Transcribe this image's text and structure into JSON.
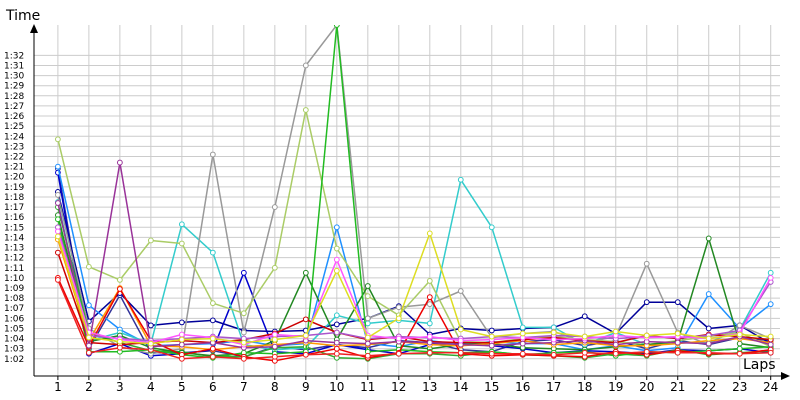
{
  "chart_data": {
    "type": "line",
    "y_axis_title": "Time",
    "x_axis_title": "Laps",
    "x": [
      1,
      2,
      3,
      4,
      5,
      6,
      7,
      8,
      9,
      10,
      11,
      12,
      13,
      14,
      15,
      16,
      17,
      18,
      19,
      20,
      21,
      22,
      23,
      24
    ],
    "y_tick_labels": [
      "1:02",
      "1:03",
      "1:04",
      "1:05",
      "1:06",
      "1:07",
      "1:08",
      "1:09",
      "1:10",
      "1:11",
      "1:12",
      "1:13",
      "1:14",
      "1:15",
      "1:16",
      "1:17",
      "1:18",
      "1:19",
      "1:20",
      "1:21",
      "1:22",
      "1:23",
      "1:24",
      "1:25",
      "1:26",
      "1:27",
      "1:28",
      "1:29",
      "1:30",
      "1:31",
      "1:32"
    ],
    "y_unit": "seconds",
    "ylim": [
      60.3,
      95
    ],
    "xlim": [
      0.1,
      24.3
    ],
    "grid": true,
    "legend": "none",
    "series": [
      {
        "color": "#333399",
        "values": [
          80.8,
          63.0,
          68.3,
          62.6,
          62.6,
          62.8,
          62.2,
          63.2,
          62.9,
          63.4,
          63.1,
          63.8,
          63.6,
          62.9,
          62.7,
          63.7,
          63.9,
          63.3,
          63.8,
          63.0,
          63.8,
          63.4,
          64.1,
          63.8
        ]
      },
      {
        "color": "#0000cc",
        "values": [
          80.4,
          62.5,
          63.5,
          62.3,
          62.5,
          62.9,
          70.5,
          62.7,
          62.5,
          63.4,
          62.9,
          62.5,
          63.4,
          63.5,
          63.3,
          63.0,
          62.6,
          62.8,
          62.7,
          62.5,
          62.9,
          62.8,
          63.0,
          62.6
        ]
      },
      {
        "color": "#000099",
        "values": [
          78.5,
          65.7,
          68.5,
          65.3,
          65.6,
          65.8,
          64.8,
          64.7,
          64.8,
          65.4,
          66.0,
          67.2,
          64.4,
          65.0,
          64.8,
          65.0,
          65.1,
          66.2,
          64.5,
          67.6,
          67.6,
          65.0,
          65.3,
          63.5
        ]
      },
      {
        "color": "#1e90ff",
        "values": [
          81.0,
          67.3,
          64.9,
          63.3,
          63.4,
          63.5,
          63.8,
          63.3,
          63.5,
          75.0,
          63.5,
          63.2,
          63.8,
          63.4,
          63.7,
          63.5,
          63.5,
          62.9,
          63.3,
          62.8,
          63.1,
          68.4,
          65.0,
          67.4
        ]
      },
      {
        "color": "#33cccc",
        "values": [
          77.5,
          63.8,
          64.6,
          63.5,
          75.3,
          72.5,
          63.4,
          62.9,
          63.1,
          66.3,
          65.5,
          65.8,
          65.5,
          79.7,
          75.0,
          65.1,
          65.1,
          63.4,
          64.6,
          63.4,
          63.6,
          63.6,
          64.9,
          70.5
        ]
      },
      {
        "color": "#999999",
        "values": [
          78.2,
          65.0,
          63.2,
          62.5,
          63.0,
          82.2,
          64.6,
          77.0,
          91.0,
          95.0,
          66.0,
          67.1,
          67.4,
          68.7,
          64.1,
          64.5,
          64.7,
          63.6,
          64.2,
          71.4,
          64.6,
          63.4,
          65.3,
          64.0
        ]
      },
      {
        "color": "#aacc66",
        "values": [
          83.7,
          71.1,
          69.8,
          73.7,
          73.4,
          67.5,
          66.5,
          71.0,
          86.6,
          72.9,
          68.2,
          66.3,
          69.7,
          63.7,
          63.6,
          64.0,
          64.2,
          63.9,
          63.7,
          63.4,
          63.8,
          64.2,
          64.6,
          63.2
        ]
      },
      {
        "color": "#33aa33",
        "values": [
          77.0,
          64.6,
          63.6,
          62.8,
          62.7,
          62.2,
          62.2,
          63.1,
          63.2,
          62.1,
          62.0,
          62.5,
          62.5,
          62.3,
          62.7,
          62.4,
          62.3,
          62.1,
          62.5,
          62.3,
          62.9,
          62.4,
          62.6,
          62.8
        ]
      },
      {
        "color": "#228822",
        "values": [
          76.2,
          63.7,
          64.3,
          63.1,
          62.6,
          62.3,
          62.5,
          63.8,
          70.5,
          63.9,
          69.2,
          63.3,
          63.0,
          63.4,
          63.5,
          63.1,
          63.0,
          62.9,
          63.2,
          63.4,
          63.7,
          73.9,
          63.5,
          63.1
        ]
      },
      {
        "color": "#22bb22",
        "values": [
          75.8,
          62.7,
          62.7,
          62.9,
          62.4,
          62.1,
          62.6,
          62.5,
          62.7,
          95.0,
          62.7,
          62.9,
          62.7,
          62.6,
          62.7,
          62.4,
          62.6,
          62.7,
          62.3,
          62.7,
          62.6,
          62.8,
          63.0,
          63.2
        ]
      },
      {
        "color": "#ff9900",
        "values": [
          73.8,
          63.8,
          69.0,
          63.3,
          63.2,
          62.9,
          63.2,
          63.4,
          63.6,
          63.3,
          63.4,
          63.7,
          63.4,
          63.3,
          63.5,
          63.8,
          63.4,
          63.6,
          63.3,
          63.3,
          63.5,
          63.8,
          64.0,
          63.6
        ]
      },
      {
        "color": "#ee0000",
        "values": [
          70.0,
          63.2,
          68.9,
          63.8,
          62.4,
          63.0,
          62.2,
          61.8,
          62.4,
          63.0,
          62.1,
          62.6,
          68.1,
          62.5,
          62.3,
          62.4,
          62.3,
          62.2,
          62.7,
          62.4,
          62.8,
          62.5,
          62.5,
          62.9
        ]
      },
      {
        "color": "#cc0000",
        "values": [
          72.5,
          63.6,
          63.4,
          63.6,
          63.8,
          63.6,
          63.9,
          64.5,
          65.9,
          64.6,
          63.9,
          64.2,
          63.7,
          63.6,
          63.6,
          63.9,
          64.1,
          63.8,
          63.6,
          64.3,
          64.0,
          64.4,
          64.2,
          63.9
        ]
      },
      {
        "color": "#ee2222",
        "values": [
          69.8,
          62.6,
          63.1,
          62.9,
          62.0,
          62.2,
          62.0,
          62.2,
          62.4,
          62.5,
          62.3,
          62.5,
          62.6,
          62.6,
          62.5,
          62.5,
          62.4,
          62.6,
          62.5,
          62.7,
          62.6,
          62.6,
          62.5,
          62.6
        ]
      },
      {
        "color": "#993399",
        "values": [
          77.4,
          63.3,
          81.4,
          63.2,
          63.4,
          63.6,
          63.1,
          63.2,
          63.8,
          63.6,
          63.5,
          63.7,
          63.6,
          63.4,
          63.3,
          63.5,
          63.6,
          63.8,
          63.4,
          63.7,
          63.6,
          63.5,
          64.2,
          63.4
        ]
      },
      {
        "color": "#aa55cc",
        "values": [
          75.0,
          64.3,
          64.0,
          63.8,
          64.0,
          64.2,
          64.0,
          64.2,
          64.3,
          64.6,
          64.0,
          64.2,
          64.1,
          64.0,
          64.2,
          64.1,
          64.3,
          64.2,
          64.0,
          64.2,
          64.1,
          64.3,
          64.8,
          69.6
        ]
      },
      {
        "color": "#ff55ff",
        "values": [
          74.6,
          64.6,
          63.9,
          63.6,
          64.4,
          64.1,
          63.4,
          64.4,
          64.2,
          71.8,
          64.3,
          64.0,
          64.2,
          63.8,
          63.9,
          64.1,
          63.9,
          64.0,
          64.3,
          64.1,
          64.2,
          64.0,
          64.5,
          70.0
        ]
      },
      {
        "color": "#dddd22",
        "values": [
          74.1,
          64.1,
          63.7,
          63.5,
          63.9,
          64.0,
          63.6,
          63.9,
          64.3,
          70.7,
          64.1,
          66.0,
          74.4,
          64.9,
          64.2,
          64.5,
          64.6,
          64.2,
          64.7,
          64.3,
          64.5,
          64.0,
          64.4,
          64.2
        ]
      }
    ]
  }
}
